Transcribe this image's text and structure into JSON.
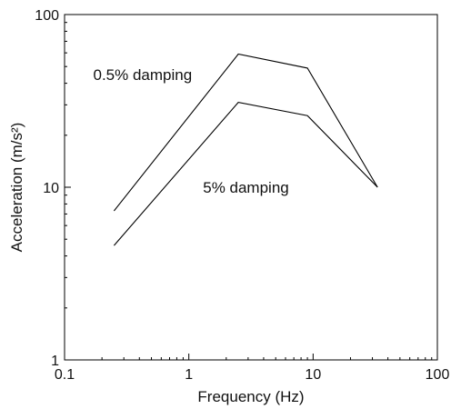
{
  "chart_data": {
    "type": "line",
    "xlabel": "Frequency (Hz)",
    "ylabel": "Acceleration (m/s²)",
    "xscale": "log",
    "yscale": "log",
    "xlim": [
      0.1,
      100
    ],
    "ylim": [
      1,
      100
    ],
    "grid": false,
    "legend": "none",
    "x_ticks": [
      {
        "value": 0.1,
        "label": "0.1"
      },
      {
        "value": 1,
        "label": "1"
      },
      {
        "value": 10,
        "label": "10"
      },
      {
        "value": 100,
        "label": "100"
      }
    ],
    "y_ticks": [
      {
        "value": 1,
        "label": "1"
      },
      {
        "value": 10,
        "label": "10"
      },
      {
        "value": 100,
        "label": "100"
      }
    ],
    "series": [
      {
        "x": [
          0.25,
          2.5,
          9,
          33
        ],
        "y": [
          7.3,
          59,
          49,
          10
        ]
      },
      {
        "x": [
          0.25,
          2.5,
          9,
          33
        ],
        "y": [
          4.6,
          31,
          26,
          10
        ]
      }
    ],
    "annotations": [
      {
        "text": "0.5% damping",
        "x": 0.17,
        "y": 45
      },
      {
        "text": "5% damping",
        "x": 1.3,
        "y": 10
      }
    ]
  }
}
